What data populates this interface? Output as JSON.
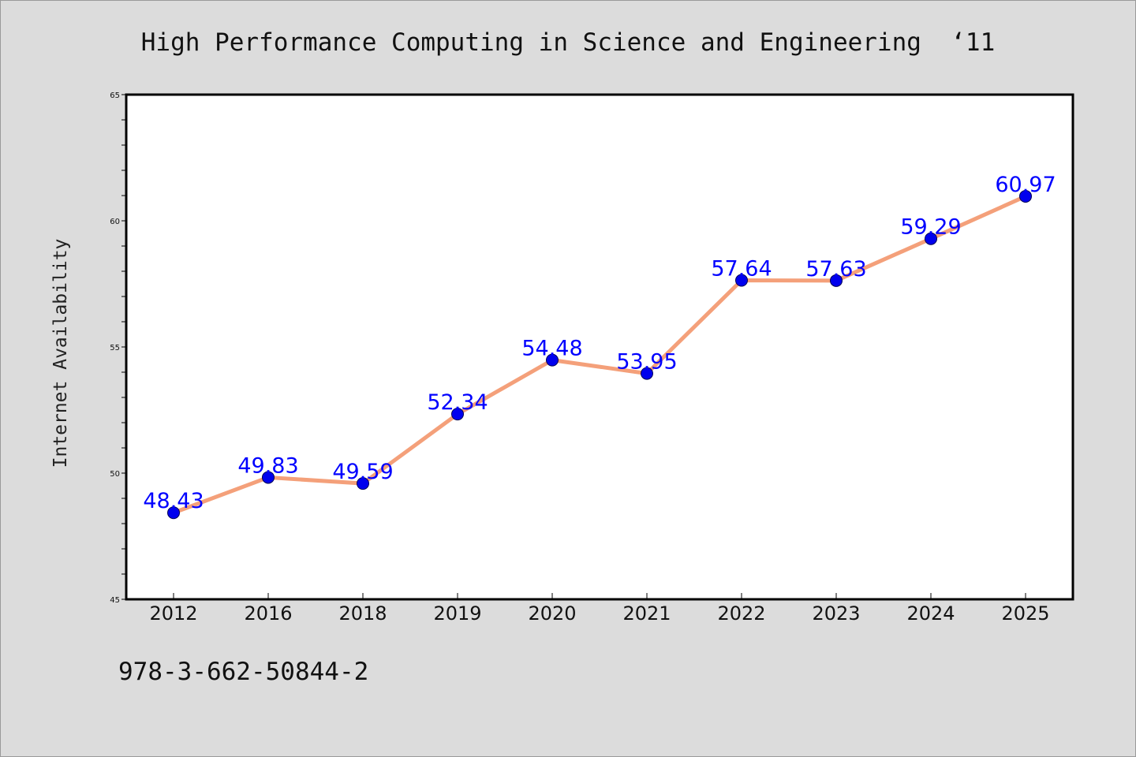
{
  "chart_data": {
    "type": "line",
    "title": "High Performance Computing in Science and Engineering  ‘11",
    "ylabel": "Internet Availability",
    "xlabel": "",
    "categories": [
      "2012",
      "2016",
      "2018",
      "2019",
      "2020",
      "2021",
      "2022",
      "2023",
      "2024",
      "2025"
    ],
    "series": [
      {
        "values": [
          48.43,
          49.83,
          49.59,
          52.34,
          54.48,
          53.95,
          57.64,
          57.63,
          59.29,
          60.97
        ],
        "data_labels": [
          "48.43",
          "49.83",
          "49.59",
          "52.34",
          "54.48",
          "53.95",
          "57.64",
          "57.63",
          "59.29",
          "60.97"
        ],
        "line_color": "#f4a07a",
        "marker_color": "#0000ee"
      }
    ],
    "ylim": [
      45,
      65
    ],
    "yticks": [
      45,
      50,
      55,
      60,
      65
    ],
    "ytick_labels": [
      "45",
      "50",
      "55",
      "60",
      "65"
    ],
    "grid": false,
    "legend": "none",
    "label_color": "#0000ff",
    "background": "#dcdcdc",
    "plot_background": "#ffffff"
  },
  "footer": {
    "isbn": "978-3-662-50844-2"
  }
}
